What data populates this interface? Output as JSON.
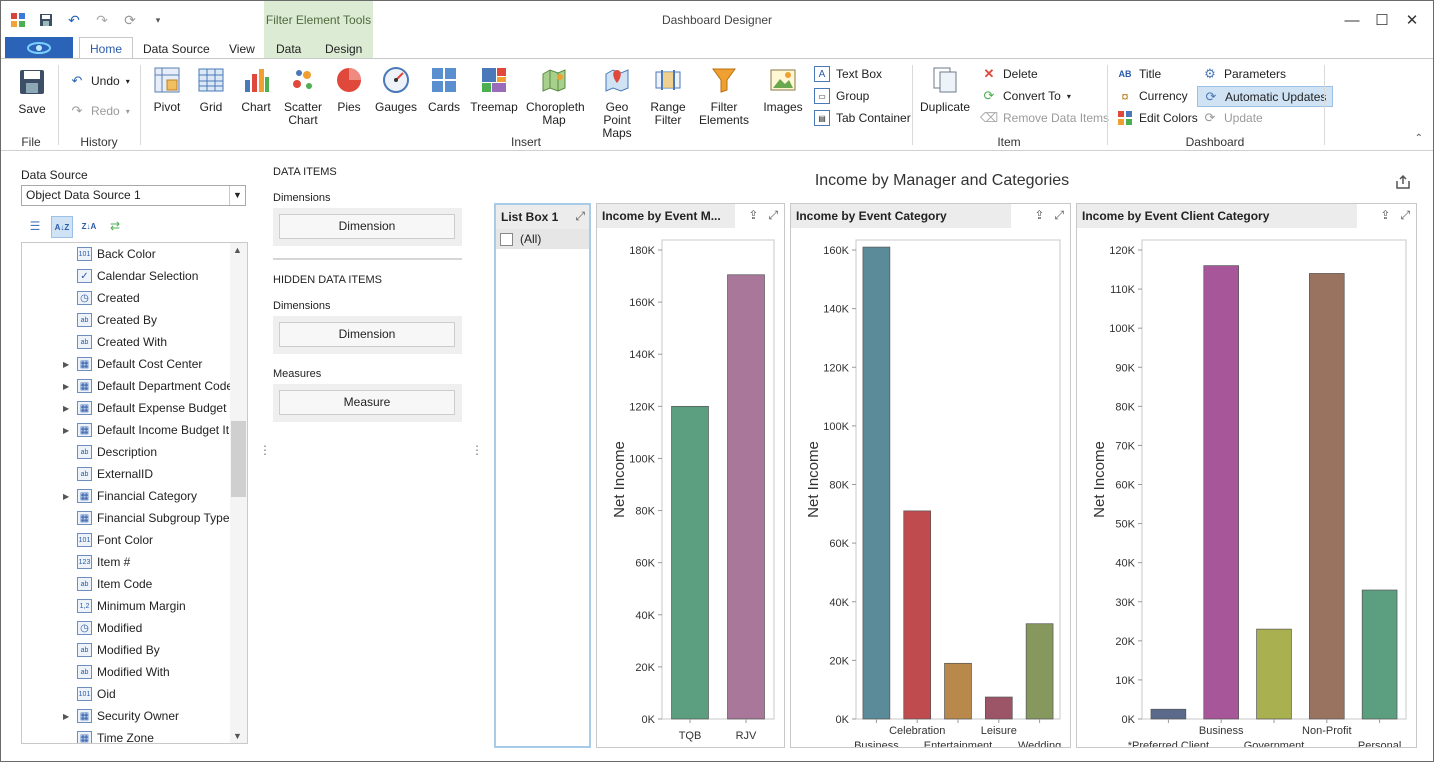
{
  "window": {
    "title": "Dashboard Designer"
  },
  "context_tab_group": "Filter Element Tools",
  "tabs": [
    "Home",
    "Data Source",
    "View",
    "Data",
    "Design"
  ],
  "ribbon": {
    "file": {
      "save": "Save",
      "group": "File"
    },
    "history": {
      "undo": "Undo",
      "redo": "Redo",
      "group": "History"
    },
    "insert": {
      "buttons": [
        "Pivot",
        "Grid",
        "Chart",
        "Scatter Chart",
        "Pies",
        "Gauges",
        "Cards",
        "Treemap",
        "Choropleth Map",
        "Geo Point Maps",
        "Range Filter",
        "Filter Elements",
        "Images"
      ],
      "small": [
        "Text Box",
        "Group",
        "Tab Container"
      ],
      "group": "Insert"
    },
    "item": {
      "duplicate": "Duplicate",
      "delete": "Delete",
      "convert_to": "Convert To",
      "remove_data_items": "Remove Data Items",
      "group": "Item"
    },
    "dashboard": {
      "title": "Title",
      "currency": "Currency",
      "edit_colors": "Edit Colors",
      "parameters": "Parameters",
      "automatic_updates": "Automatic Updates",
      "update": "Update",
      "group": "Dashboard"
    }
  },
  "data_source": {
    "label": "Data Source",
    "selected": "Object Data Source 1",
    "fields": [
      {
        "name": "Back Color",
        "type": "101",
        "expandable": false
      },
      {
        "name": "Calendar Selection",
        "type": "check",
        "expandable": false
      },
      {
        "name": "Created",
        "type": "clock",
        "expandable": false
      },
      {
        "name": "Created By",
        "type": "ab",
        "expandable": false
      },
      {
        "name": "Created With",
        "type": "ab",
        "expandable": false
      },
      {
        "name": "Default Cost Center",
        "type": "table",
        "expandable": true
      },
      {
        "name": "Default Department Code",
        "type": "table",
        "expandable": true
      },
      {
        "name": "Default Expense Budget ...",
        "type": "table",
        "expandable": true
      },
      {
        "name": "Default Income Budget It...",
        "type": "table",
        "expandable": true
      },
      {
        "name": "Description",
        "type": "ab",
        "expandable": false
      },
      {
        "name": "ExternalID",
        "type": "ab",
        "expandable": false
      },
      {
        "name": "Financial Category",
        "type": "table",
        "expandable": true
      },
      {
        "name": "Financial Subgroup Type",
        "type": "table",
        "expandable": false
      },
      {
        "name": "Font Color",
        "type": "101",
        "expandable": false
      },
      {
        "name": "Item #",
        "type": "123",
        "expandable": false
      },
      {
        "name": "Item Code",
        "type": "ab",
        "expandable": false
      },
      {
        "name": "Minimum Margin",
        "type": "1,2",
        "expandable": false
      },
      {
        "name": "Modified",
        "type": "clock",
        "expandable": false
      },
      {
        "name": "Modified By",
        "type": "ab",
        "expandable": false
      },
      {
        "name": "Modified With",
        "type": "ab",
        "expandable": false
      },
      {
        "name": "Oid",
        "type": "101",
        "expandable": false
      },
      {
        "name": "Security Owner",
        "type": "table",
        "expandable": true
      },
      {
        "name": "Time Zone",
        "type": "table",
        "expandable": false
      }
    ]
  },
  "data_items": {
    "title": "DATA ITEMS",
    "dimensions_label": "Dimensions",
    "dimension_button": "Dimension",
    "hidden_title": "HIDDEN DATA ITEMS",
    "hidden_dimensions_label": "Dimensions",
    "hidden_dimension_button": "Dimension",
    "measures_label": "Measures",
    "measure_button": "Measure"
  },
  "dashboard": {
    "title": "Income by Manager and Categories",
    "list_box": {
      "title": "List Box 1",
      "item": "(All)"
    }
  },
  "chart_data": [
    {
      "type": "bar",
      "title": "Income by Event M...",
      "ylabel": "Net Income",
      "categories": [
        "TQB",
        "RJV"
      ],
      "values": [
        120000,
        170500
      ],
      "ylim": [
        0,
        180000
      ],
      "yticks": [
        "0K",
        "20K",
        "40K",
        "60K",
        "80K",
        "100K",
        "120K",
        "140K",
        "160K",
        "180K"
      ],
      "colors": [
        "#5b9e80",
        "#a87799"
      ]
    },
    {
      "type": "bar",
      "title": "Income by Event Category",
      "ylabel": "Net Income",
      "categories": [
        "Business",
        "Celebration",
        "Entertainment",
        "Leisure",
        "Wedding"
      ],
      "values": [
        161000,
        71000,
        19000,
        7500,
        32500
      ],
      "ylim": [
        0,
        160000
      ],
      "yticks": [
        "0K",
        "20K",
        "40K",
        "60K",
        "80K",
        "100K",
        "120K",
        "140K",
        "160K"
      ],
      "colors": [
        "#5b8b98",
        "#c04b4e",
        "#b8894b",
        "#9c5566",
        "#87985e"
      ]
    },
    {
      "type": "bar",
      "title": "Income by Event Client Category",
      "ylabel": "Net Income",
      "categories": [
        "*Preferred Client",
        "Business",
        "Government",
        "Non-Profit",
        "Personal"
      ],
      "values": [
        2500,
        116000,
        23000,
        114000,
        33000
      ],
      "ylim": [
        0,
        120000
      ],
      "yticks": [
        "0K",
        "10K",
        "20K",
        "30K",
        "40K",
        "50K",
        "60K",
        "70K",
        "80K",
        "90K",
        "100K",
        "110K",
        "120K"
      ],
      "colors": [
        "#5b6a8b",
        "#a8569a",
        "#a9b04f",
        "#9a7260",
        "#5b9e80"
      ]
    }
  ]
}
